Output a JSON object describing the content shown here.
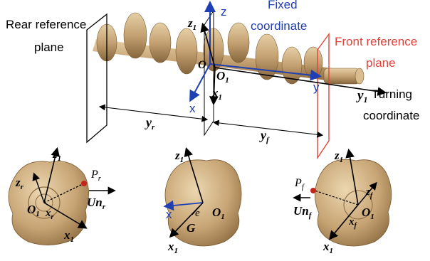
{
  "labels": {
    "rear_plane_1": "Rear reference",
    "rear_plane_2": "plane",
    "front_plane_1": "Front reference",
    "front_plane_2": "plane",
    "fixed_1": "Fixed",
    "fixed_2": "coordinate",
    "turning_1": "Turning",
    "turning_2": "coordinate"
  },
  "top_axes": {
    "z_fixed": "z",
    "x_fixed": "x",
    "y_fixed": "y",
    "origin": "O",
    "z1": "z",
    "z1_sub": "1",
    "x1": "x",
    "x1_sub": "1",
    "y1": "y",
    "y1_sub": "1",
    "O1": "O",
    "O1_sub": "1",
    "yr": "y",
    "yr_sub": "r",
    "yf": "y",
    "yf_sub": "f"
  },
  "rear_view": {
    "z1": "z",
    "z1_sub": "1",
    "zr": "z",
    "zr_sub": "r",
    "Pr": "P",
    "Pr_sub": "r",
    "Un": "Un",
    "Un_sub": "r",
    "O1": "O",
    "O1_sub": "1",
    "xr": "x",
    "xr_sub": "r",
    "x1": "x",
    "x1_sub": "1"
  },
  "center_view": {
    "z1": "z",
    "z1_sub": "1",
    "x": "x",
    "e": "e",
    "G": "G",
    "O1": "O",
    "O1_sub": "1",
    "x1": "x",
    "x1_sub": "1"
  },
  "front_view": {
    "z1": "z",
    "z1_sub": "1",
    "Pf": "P",
    "Pf_sub": "f",
    "zf": "z",
    "zf_sub": "f",
    "Un": "Un",
    "Un_sub": "f",
    "O1": "O",
    "O1_sub": "1",
    "xf": "x",
    "xf_sub": "f",
    "x1": "x",
    "x1_sub": "1"
  },
  "colors": {
    "crank": "#c8a676",
    "crank_dark": "#8a6a3e",
    "blue_axis": "#1f3fb3",
    "red_plane": "#e0443a"
  }
}
